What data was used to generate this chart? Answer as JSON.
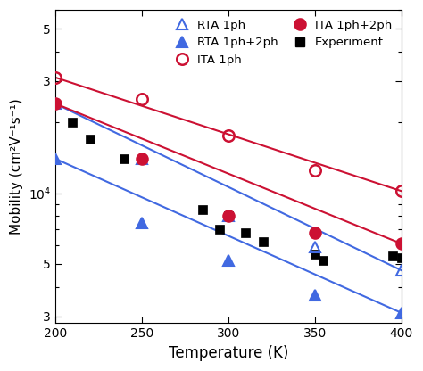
{
  "xlabel": "Temperature (K)",
  "ylabel": "Mobility (cm²V⁻¹s⁻¹)",
  "xlim": [
    200,
    400
  ],
  "ylim": [
    2800,
    60000
  ],
  "RTA_1ph_x": [
    200,
    250,
    300,
    350,
    400
  ],
  "RTA_1ph_y": [
    24000,
    14000,
    8000,
    5900,
    4700
  ],
  "ITA_1ph_x": [
    200,
    250,
    300,
    350,
    400
  ],
  "ITA_1ph_y": [
    31000,
    25000,
    17500,
    12500,
    10200
  ],
  "RTA_1ph2ph_x": [
    200,
    250,
    300,
    350,
    400
  ],
  "RTA_1ph2ph_y": [
    14000,
    7500,
    5200,
    3700,
    3100
  ],
  "ITA_1ph2ph_x": [
    200,
    250,
    300,
    350,
    400
  ],
  "ITA_1ph2ph_y": [
    24000,
    14000,
    8000,
    6800,
    6100
  ],
  "exp_x": [
    210,
    220,
    240,
    285,
    295,
    300,
    310,
    320,
    350,
    355,
    395,
    400
  ],
  "exp_y": [
    20000,
    17000,
    14000,
    8500,
    7000,
    8000,
    6800,
    6200,
    5500,
    5200,
    5400,
    5300
  ],
  "color_blue": "#4169E1",
  "color_red": "#CC1133",
  "color_black": "#000000",
  "bg_color": "#ffffff"
}
